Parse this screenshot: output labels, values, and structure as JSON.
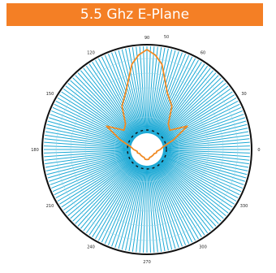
{
  "colors": {
    "title_background": "#f47f25",
    "title_text": "#ffffff",
    "spoke": "#1da9d5",
    "outer_circle": "#111111",
    "trace": "#f08a24",
    "inner_dashes": "#111111",
    "labels": "#222222"
  },
  "chart_data": {
    "type": "polar",
    "title": "5.5 Ghz E-Plane",
    "angle_ticks": [
      "0",
      "30",
      "60",
      "90",
      "120",
      "150",
      "180",
      "210",
      "240",
      "270",
      "300",
      "330"
    ],
    "radial_labels": [
      "50"
    ],
    "series": [
      {
        "angle_deg": [
          0,
          10,
          20,
          30,
          40,
          50,
          60,
          70,
          80,
          85,
          90,
          95,
          100,
          110,
          120,
          130,
          140,
          150,
          160,
          170,
          180,
          190,
          200,
          210,
          220,
          230,
          240,
          250,
          260,
          270,
          280,
          290,
          300,
          310,
          320,
          330,
          340,
          350,
          360
        ],
        "values": [
          8,
          10,
          17,
          28,
          18,
          20,
          30,
          36,
          52,
          57,
          60,
          57,
          52,
          37,
          30,
          20,
          18,
          28,
          17,
          10,
          8,
          6,
          6,
          5,
          5,
          5,
          5,
          5,
          6,
          6,
          6,
          5,
          5,
          5,
          5,
          5,
          6,
          6,
          8
        ]
      }
    ]
  }
}
